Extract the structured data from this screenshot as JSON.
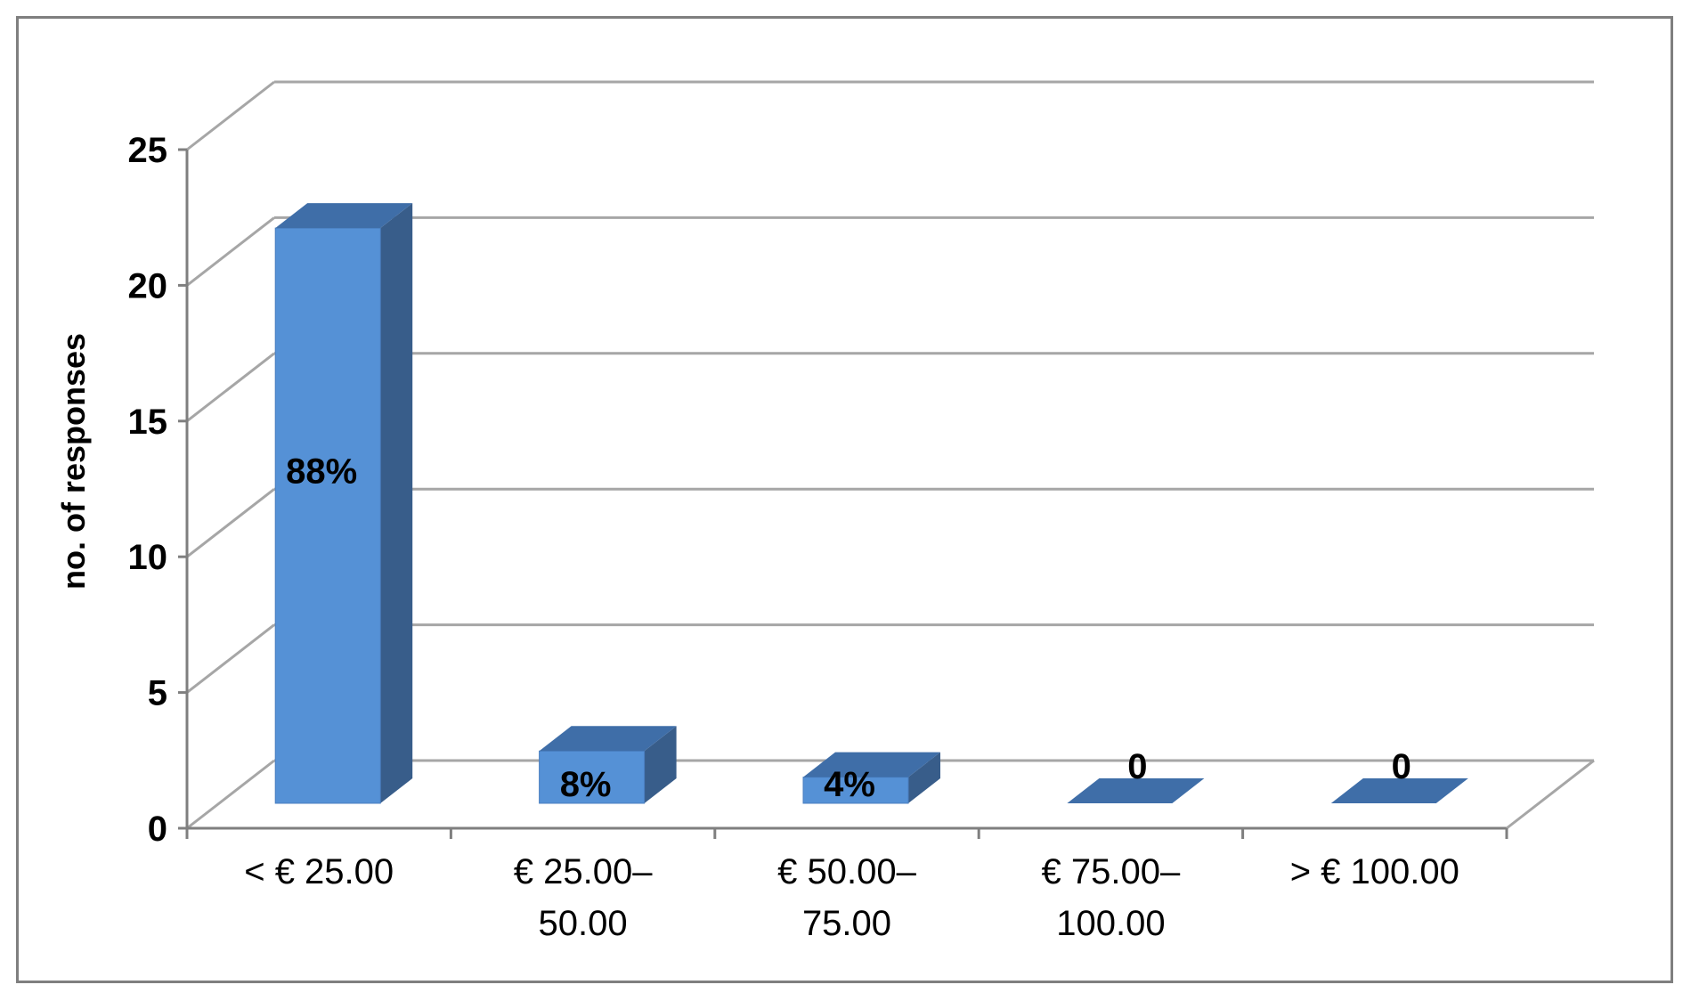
{
  "chart_data": {
    "type": "bar",
    "style": "3d-column",
    "ylabel": "no. of responses",
    "xlabel": "",
    "title": "",
    "ylim": [
      0,
      25
    ],
    "y_ticks": [
      0,
      5,
      10,
      15,
      20,
      25
    ],
    "grid": true,
    "legend": "none",
    "categories": [
      [
        "< € 25.00"
      ],
      [
        "€ 25.00–",
        "50.00"
      ],
      [
        "€ 50.00–",
        "75.00"
      ],
      [
        "€ 75.00–",
        "100.00"
      ],
      [
        "> € 100.00"
      ]
    ],
    "values": [
      22,
      2,
      1,
      0,
      0
    ],
    "data_labels": [
      "88%",
      "8%",
      "4%",
      "0",
      "0"
    ],
    "colors": {
      "bar_front": "#5591d6",
      "bar_side": "#385d8a",
      "bar_top": "#3f6ea8",
      "grid": "#a6a6a6",
      "axis": "#7f7f7f"
    }
  }
}
